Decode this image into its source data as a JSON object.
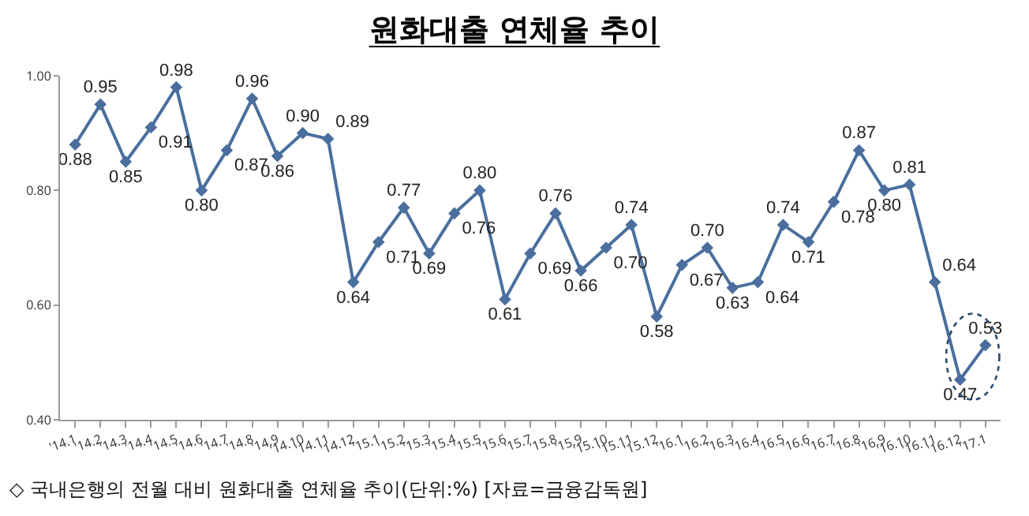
{
  "chart_data": {
    "type": "line",
    "title": "원화대출 연체율 추이",
    "categories": [
      "'14.1",
      "'14.2",
      "'14.3",
      "'14.4",
      "'14.5",
      "'14.6",
      "'14.7",
      "'14.8",
      "'14.9",
      "'14.10",
      "'14.11",
      "'14.12",
      "'15.1",
      "'15.2",
      "'15.3",
      "'15.4",
      "'15.5",
      "'15.6",
      "'15.7",
      "'15.8",
      "'15.9",
      "'15.10",
      "'15.11",
      "'15.12",
      "'16.1",
      "'16.2",
      "'16.3",
      "'16.4",
      "'16.5",
      "'16.6",
      "'16.7",
      "'16.8",
      "'16.9",
      "'16.10",
      "'16.11",
      "'16.12",
      "'17.1"
    ],
    "series": [
      {
        "color": "#4a6f9e",
        "values": [
          0.88,
          0.95,
          0.85,
          0.91,
          0.98,
          0.8,
          0.87,
          0.96,
          0.86,
          0.9,
          0.89,
          0.64,
          0.71,
          0.77,
          0.69,
          0.76,
          0.8,
          0.61,
          0.69,
          0.76,
          0.66,
          0.7,
          0.74,
          0.58,
          0.67,
          0.7,
          0.63,
          0.64,
          0.74,
          0.71,
          0.78,
          0.87,
          0.8,
          0.81,
          0.64,
          0.47,
          0.53
        ]
      }
    ],
    "ylim": [
      0.4,
      1.0
    ],
    "yticks": [
      {
        "value": 0.4,
        "label": "0.40"
      },
      {
        "value": 0.6,
        "label": "0.60"
      },
      {
        "value": 0.8,
        "label": "0.80"
      },
      {
        "value": 1.0,
        "label": "1.00"
      }
    ],
    "value_labels": [
      "0.88",
      "0.95",
      "0.85",
      "0.91",
      "0.98",
      "0.80",
      "0.87",
      "0.96",
      "0.86",
      "0.90",
      "0.89",
      "0.64",
      "0.71",
      "0.77",
      "0.69",
      "0.76",
      "0.80",
      "0.61",
      "0.69",
      "0.76",
      "0.66",
      "0.70",
      "0.74",
      "0.58",
      "0.67",
      "0.70",
      "0.63",
      "0.64",
      "0.74",
      "0.71",
      "0.78",
      "0.87",
      "0.80",
      "0.81",
      "0.64",
      "0.47",
      "0.53"
    ],
    "marker": "diamond",
    "line_style": "solid",
    "grid": false,
    "annotations": [
      "◇ 국내은행의 전월 대비 원화대출 연체율 추이(단위:%) [자료=금융감독원]"
    ]
  }
}
